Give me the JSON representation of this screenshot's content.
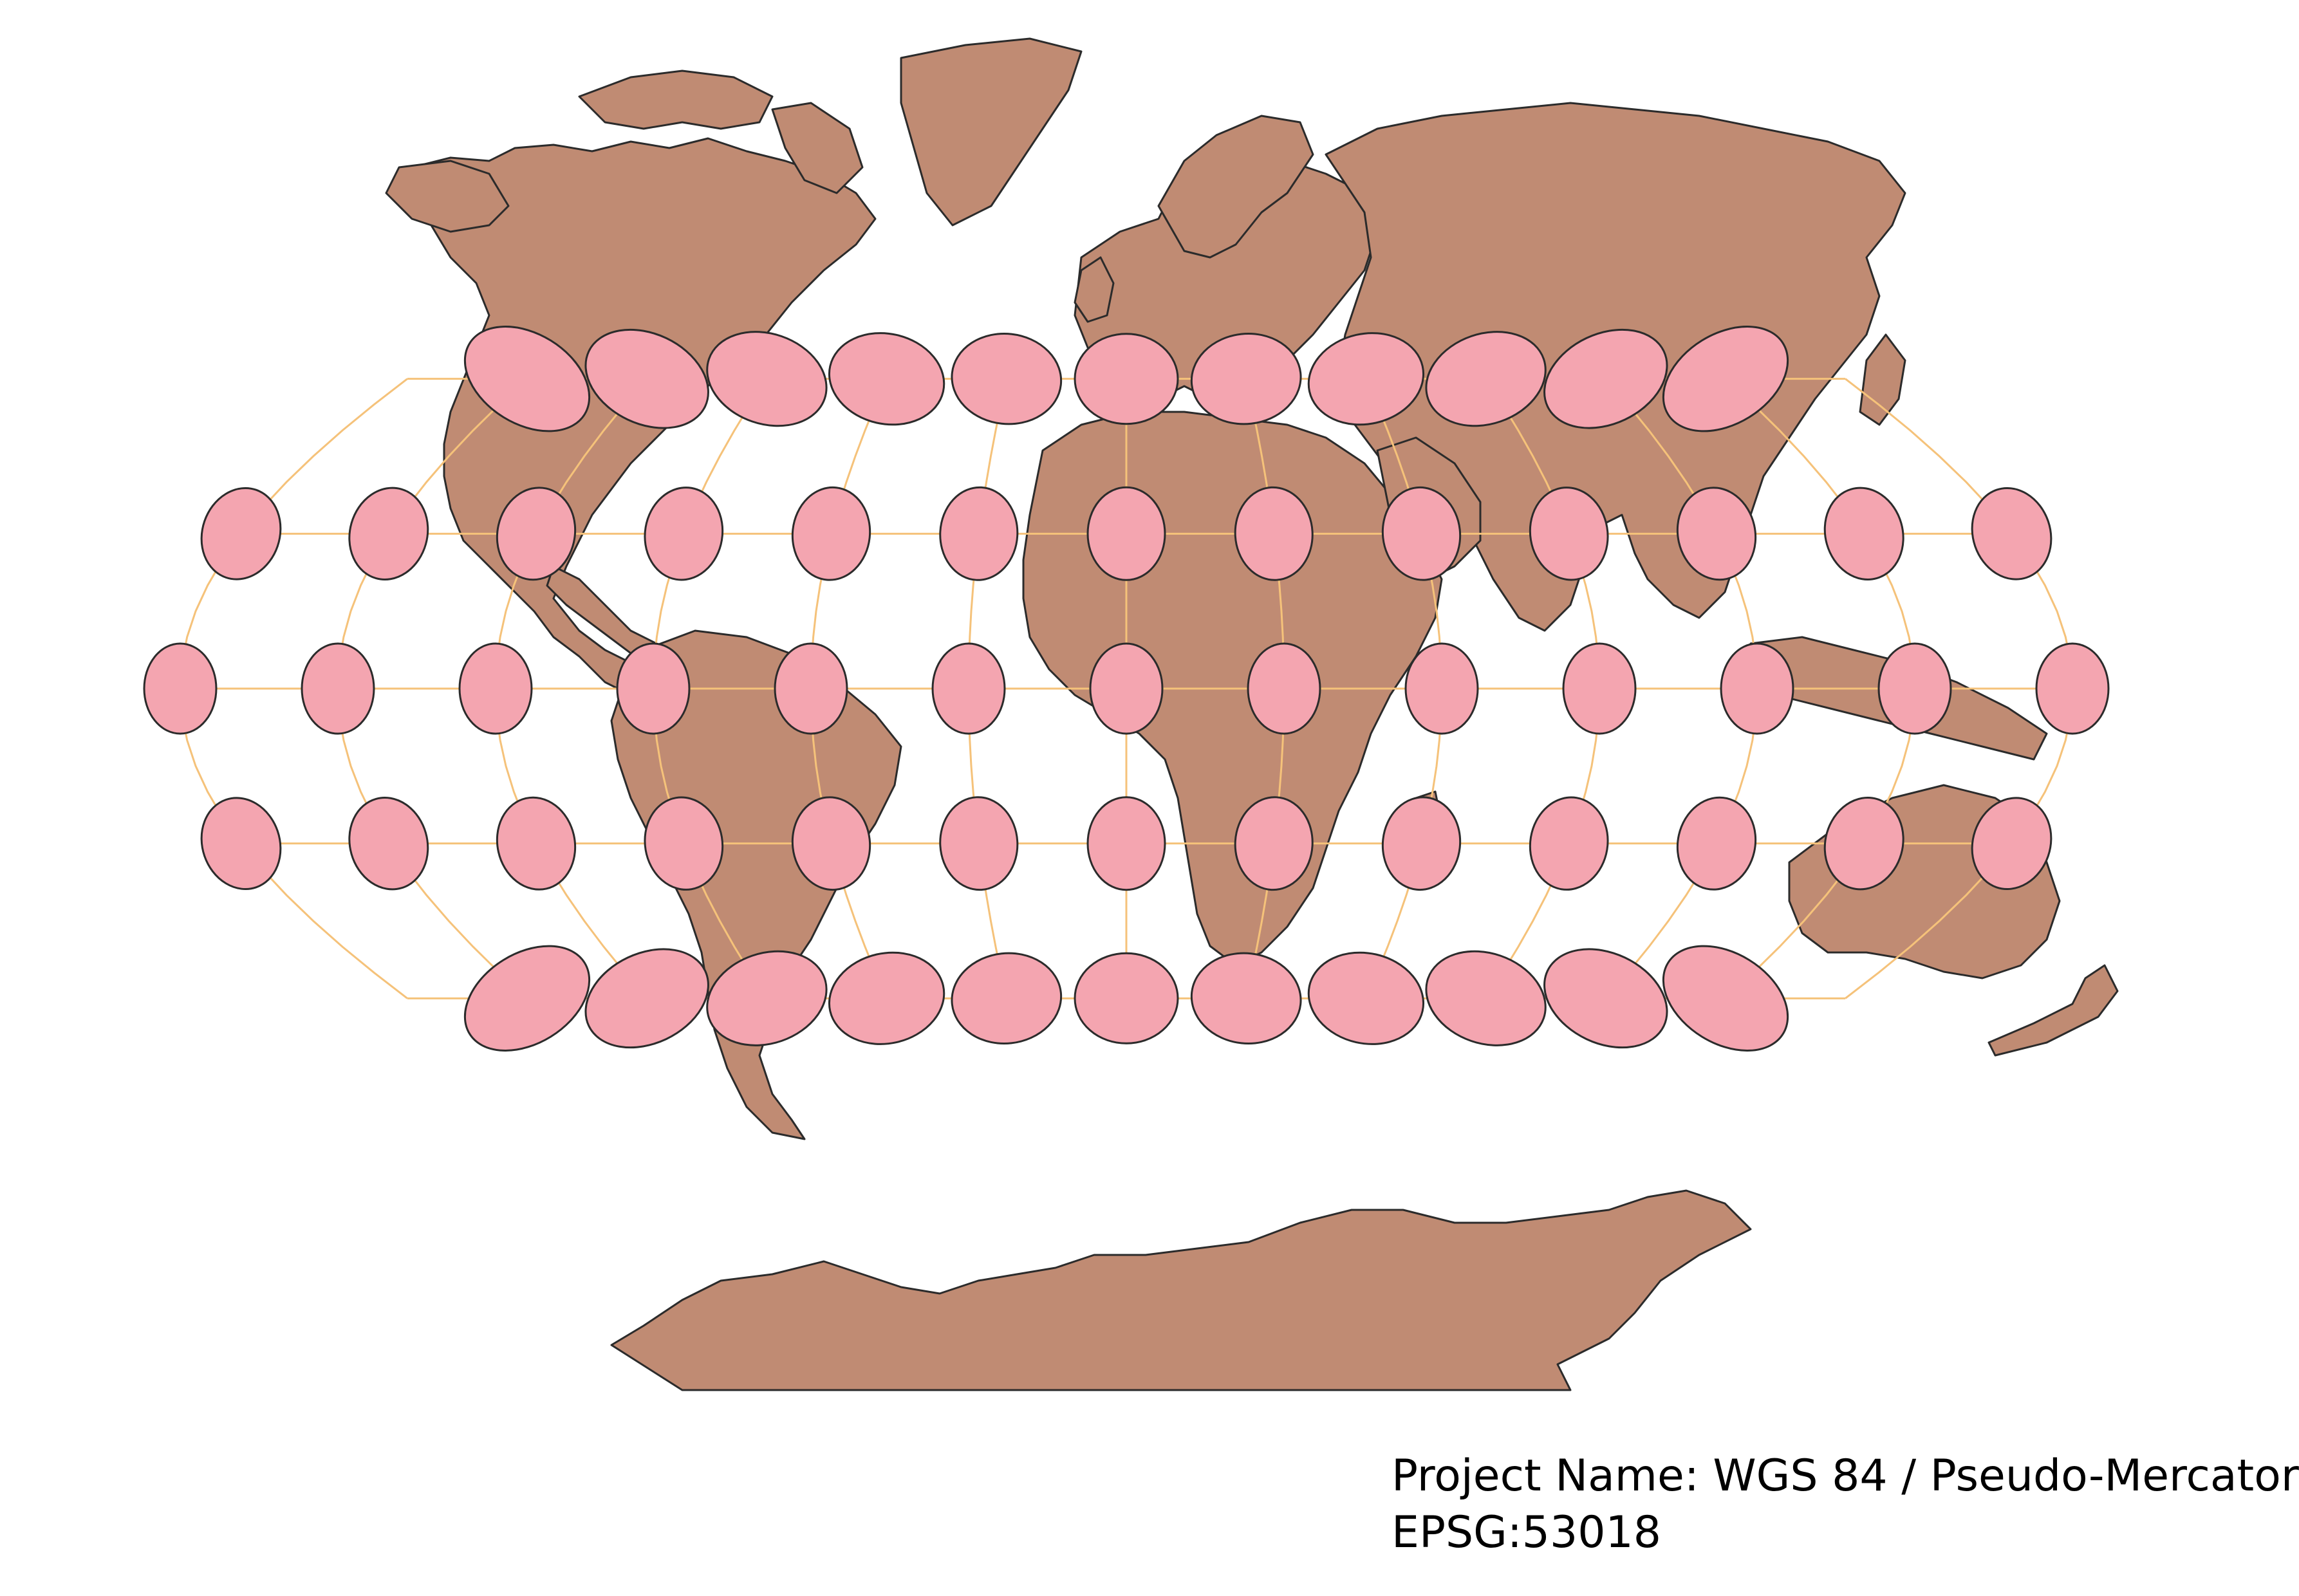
{
  "caption": {
    "project_line": "Project Name: WGS 84 / Pseudo-Mercator",
    "epsg_line": "EPSG:53018"
  },
  "style": {
    "land_fill": "#c08b73",
    "land_stroke": "#2b2b2b",
    "graticule_color": "#f5c27a",
    "indicatrix_fill": "#f4a5b0",
    "indicatrix_stroke": "#2b2b2b",
    "background": "#ffffff"
  },
  "graticule": {
    "longitudes": [
      -180,
      -150,
      -120,
      -90,
      -60,
      -30,
      0,
      30,
      60,
      90,
      120,
      150,
      180
    ],
    "latitudes": [
      -60,
      -30,
      0,
      30,
      60
    ]
  },
  "indicatrix": {
    "latitudes": [
      60,
      30,
      0,
      -30,
      -60
    ],
    "longitudes_at_60": [
      -150,
      -120,
      -90,
      -60,
      -30,
      0,
      30,
      60,
      90,
      120,
      150
    ],
    "longitudes_other": [
      -180,
      -150,
      -120,
      -90,
      -60,
      -30,
      0,
      30,
      60,
      90,
      120,
      150,
      180
    ]
  }
}
